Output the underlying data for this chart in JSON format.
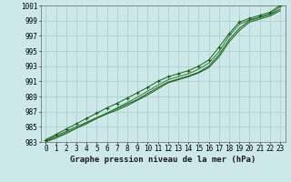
{
  "title": "Graphe pression niveau de la mer (hPa)",
  "xlim": [
    -0.5,
    23.5
  ],
  "ylim": [
    983,
    1001
  ],
  "yticks": [
    983,
    985,
    987,
    989,
    991,
    993,
    995,
    997,
    999,
    1001
  ],
  "xticks": [
    0,
    1,
    2,
    3,
    4,
    5,
    6,
    7,
    8,
    9,
    10,
    11,
    12,
    13,
    14,
    15,
    16,
    17,
    18,
    19,
    20,
    21,
    22,
    23
  ],
  "background_color": "#cce8e8",
  "grid_color": "#aacccc",
  "line_color_dark": "#1a5c1a",
  "line_color_med": "#2a7a2a",
  "series1": [
    983.2,
    983.8,
    984.4,
    985.0,
    985.6,
    986.2,
    986.8,
    987.4,
    988.0,
    988.6,
    989.4,
    990.2,
    990.9,
    991.3,
    991.7,
    992.2,
    993.0,
    994.5,
    996.5,
    998.0,
    999.0,
    999.4,
    999.8,
    1000.5
  ],
  "series2": [
    983.1,
    983.6,
    984.2,
    984.8,
    985.4,
    986.1,
    986.7,
    987.2,
    987.8,
    988.5,
    989.2,
    990.0,
    990.8,
    991.2,
    991.6,
    992.1,
    992.8,
    994.2,
    996.2,
    997.7,
    998.8,
    999.2,
    999.6,
    1000.3
  ],
  "series3": [
    983.0,
    983.5,
    984.1,
    984.8,
    985.5,
    986.2,
    986.8,
    987.5,
    988.2,
    988.9,
    989.7,
    990.5,
    991.2,
    991.6,
    992.0,
    992.6,
    993.4,
    994.9,
    997.0,
    998.5,
    999.1,
    999.5,
    999.9,
    1000.8
  ],
  "series4_marked": [
    983.3,
    984.0,
    984.7,
    985.4,
    986.1,
    986.8,
    987.5,
    988.1,
    988.8,
    989.5,
    990.2,
    991.0,
    991.6,
    992.0,
    992.4,
    993.0,
    993.8,
    995.5,
    997.3,
    998.8,
    999.3,
    999.7,
    1000.1,
    1001.0
  ],
  "title_fontsize": 6.5,
  "tick_fontsize": 5.5,
  "font_family": "monospace"
}
